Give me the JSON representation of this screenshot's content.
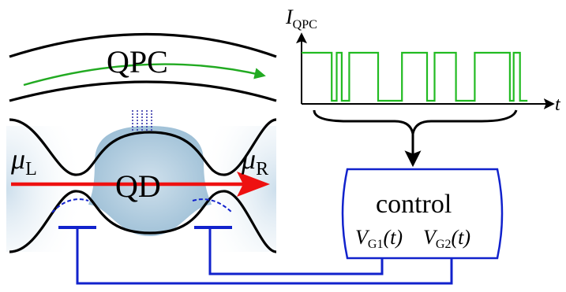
{
  "labels": {
    "qpc": "QPC",
    "qd": "QD",
    "mu": "μ",
    "mu_left_sub": "L",
    "mu_right_sub": "R",
    "current_symbol": "I",
    "current_sub": "QPC",
    "time_axis": "t",
    "control": "control",
    "vg1_symbol": "V",
    "vg1_sub": "G1",
    "vg1_arg": "(t)",
    "vg2_symbol": "V",
    "vg2_sub": "G2",
    "vg2_arg": "(t)"
  },
  "colors": {
    "outline": "#000000",
    "qpc_current": "#22aa22",
    "transport_arrow": "#ee1111",
    "gate_wires": "#1122cc",
    "dot_fill": "#a9c8dc",
    "trace": "#22bb22"
  },
  "chart_data": {
    "type": "line",
    "xlabel": "t",
    "ylabel": "I_QPC",
    "levels": [
      "low",
      "high"
    ],
    "x": [
      0,
      0.02,
      0.12,
      0.14,
      0.16,
      0.19,
      0.305,
      0.4,
      0.5,
      0.53,
      0.615,
      0.69,
      0.83,
      0.845,
      0.87,
      0.9
    ],
    "y": [
      1,
      1,
      0,
      1,
      0,
      1,
      0,
      1,
      0,
      1,
      0,
      1,
      0,
      1,
      0,
      0
    ]
  }
}
